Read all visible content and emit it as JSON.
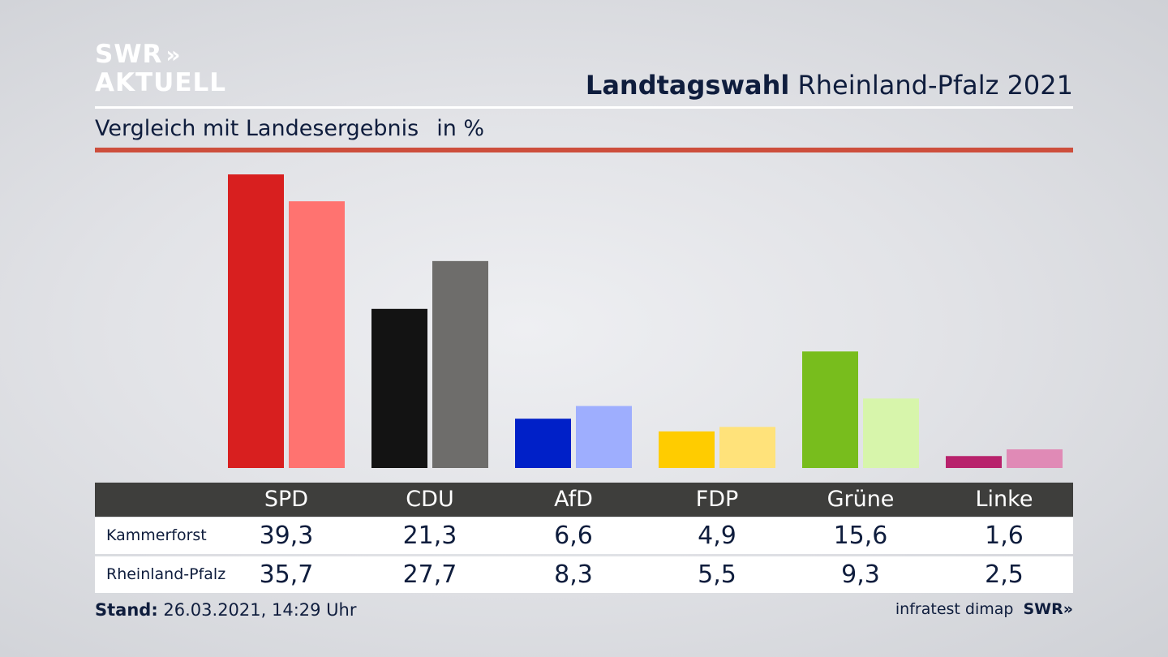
{
  "header": {
    "logo_line1": "SWR",
    "logo_chevrons": "»",
    "logo_line2": "AKTUELL",
    "title_bold": "Landtagswahl",
    "title_rest": " Rheinland-Pfalz 2021",
    "subtitle": "Vergleich mit Landesergebnis",
    "unit": "in %"
  },
  "chart_data": {
    "type": "bar",
    "categories": [
      "SPD",
      "CDU",
      "AfD",
      "FDP",
      "Grüne",
      "Linke"
    ],
    "series": [
      {
        "name": "Kammerforst",
        "values": [
          39.3,
          21.3,
          6.6,
          4.9,
          15.6,
          1.6
        ],
        "labels": [
          "39,3",
          "21,3",
          "6,6",
          "4,9",
          "15,6",
          "1,6"
        ]
      },
      {
        "name": "Rheinland-Pfalz",
        "values": [
          35.7,
          27.7,
          8.3,
          5.5,
          9.3,
          2.5
        ],
        "labels": [
          "35,7",
          "27,7",
          "8,3",
          "5,5",
          "9,3",
          "2,5"
        ]
      }
    ],
    "colors": {
      "series1": [
        "#d81f1f",
        "#131313",
        "#0020c8",
        "#ffcc00",
        "#78bd1d",
        "#b8226c"
      ],
      "series2": [
        "#ff7370",
        "#6e6d6b",
        "#9eaefe",
        "#ffe27a",
        "#d7f5ab",
        "#e08ab6"
      ]
    },
    "ylim": [
      0,
      40
    ]
  },
  "footer": {
    "stand_label": "Stand:",
    "stand_value": " 26.03.2021, 14:29 Uhr",
    "source": "infratest dimap",
    "logo": "SWR»"
  }
}
